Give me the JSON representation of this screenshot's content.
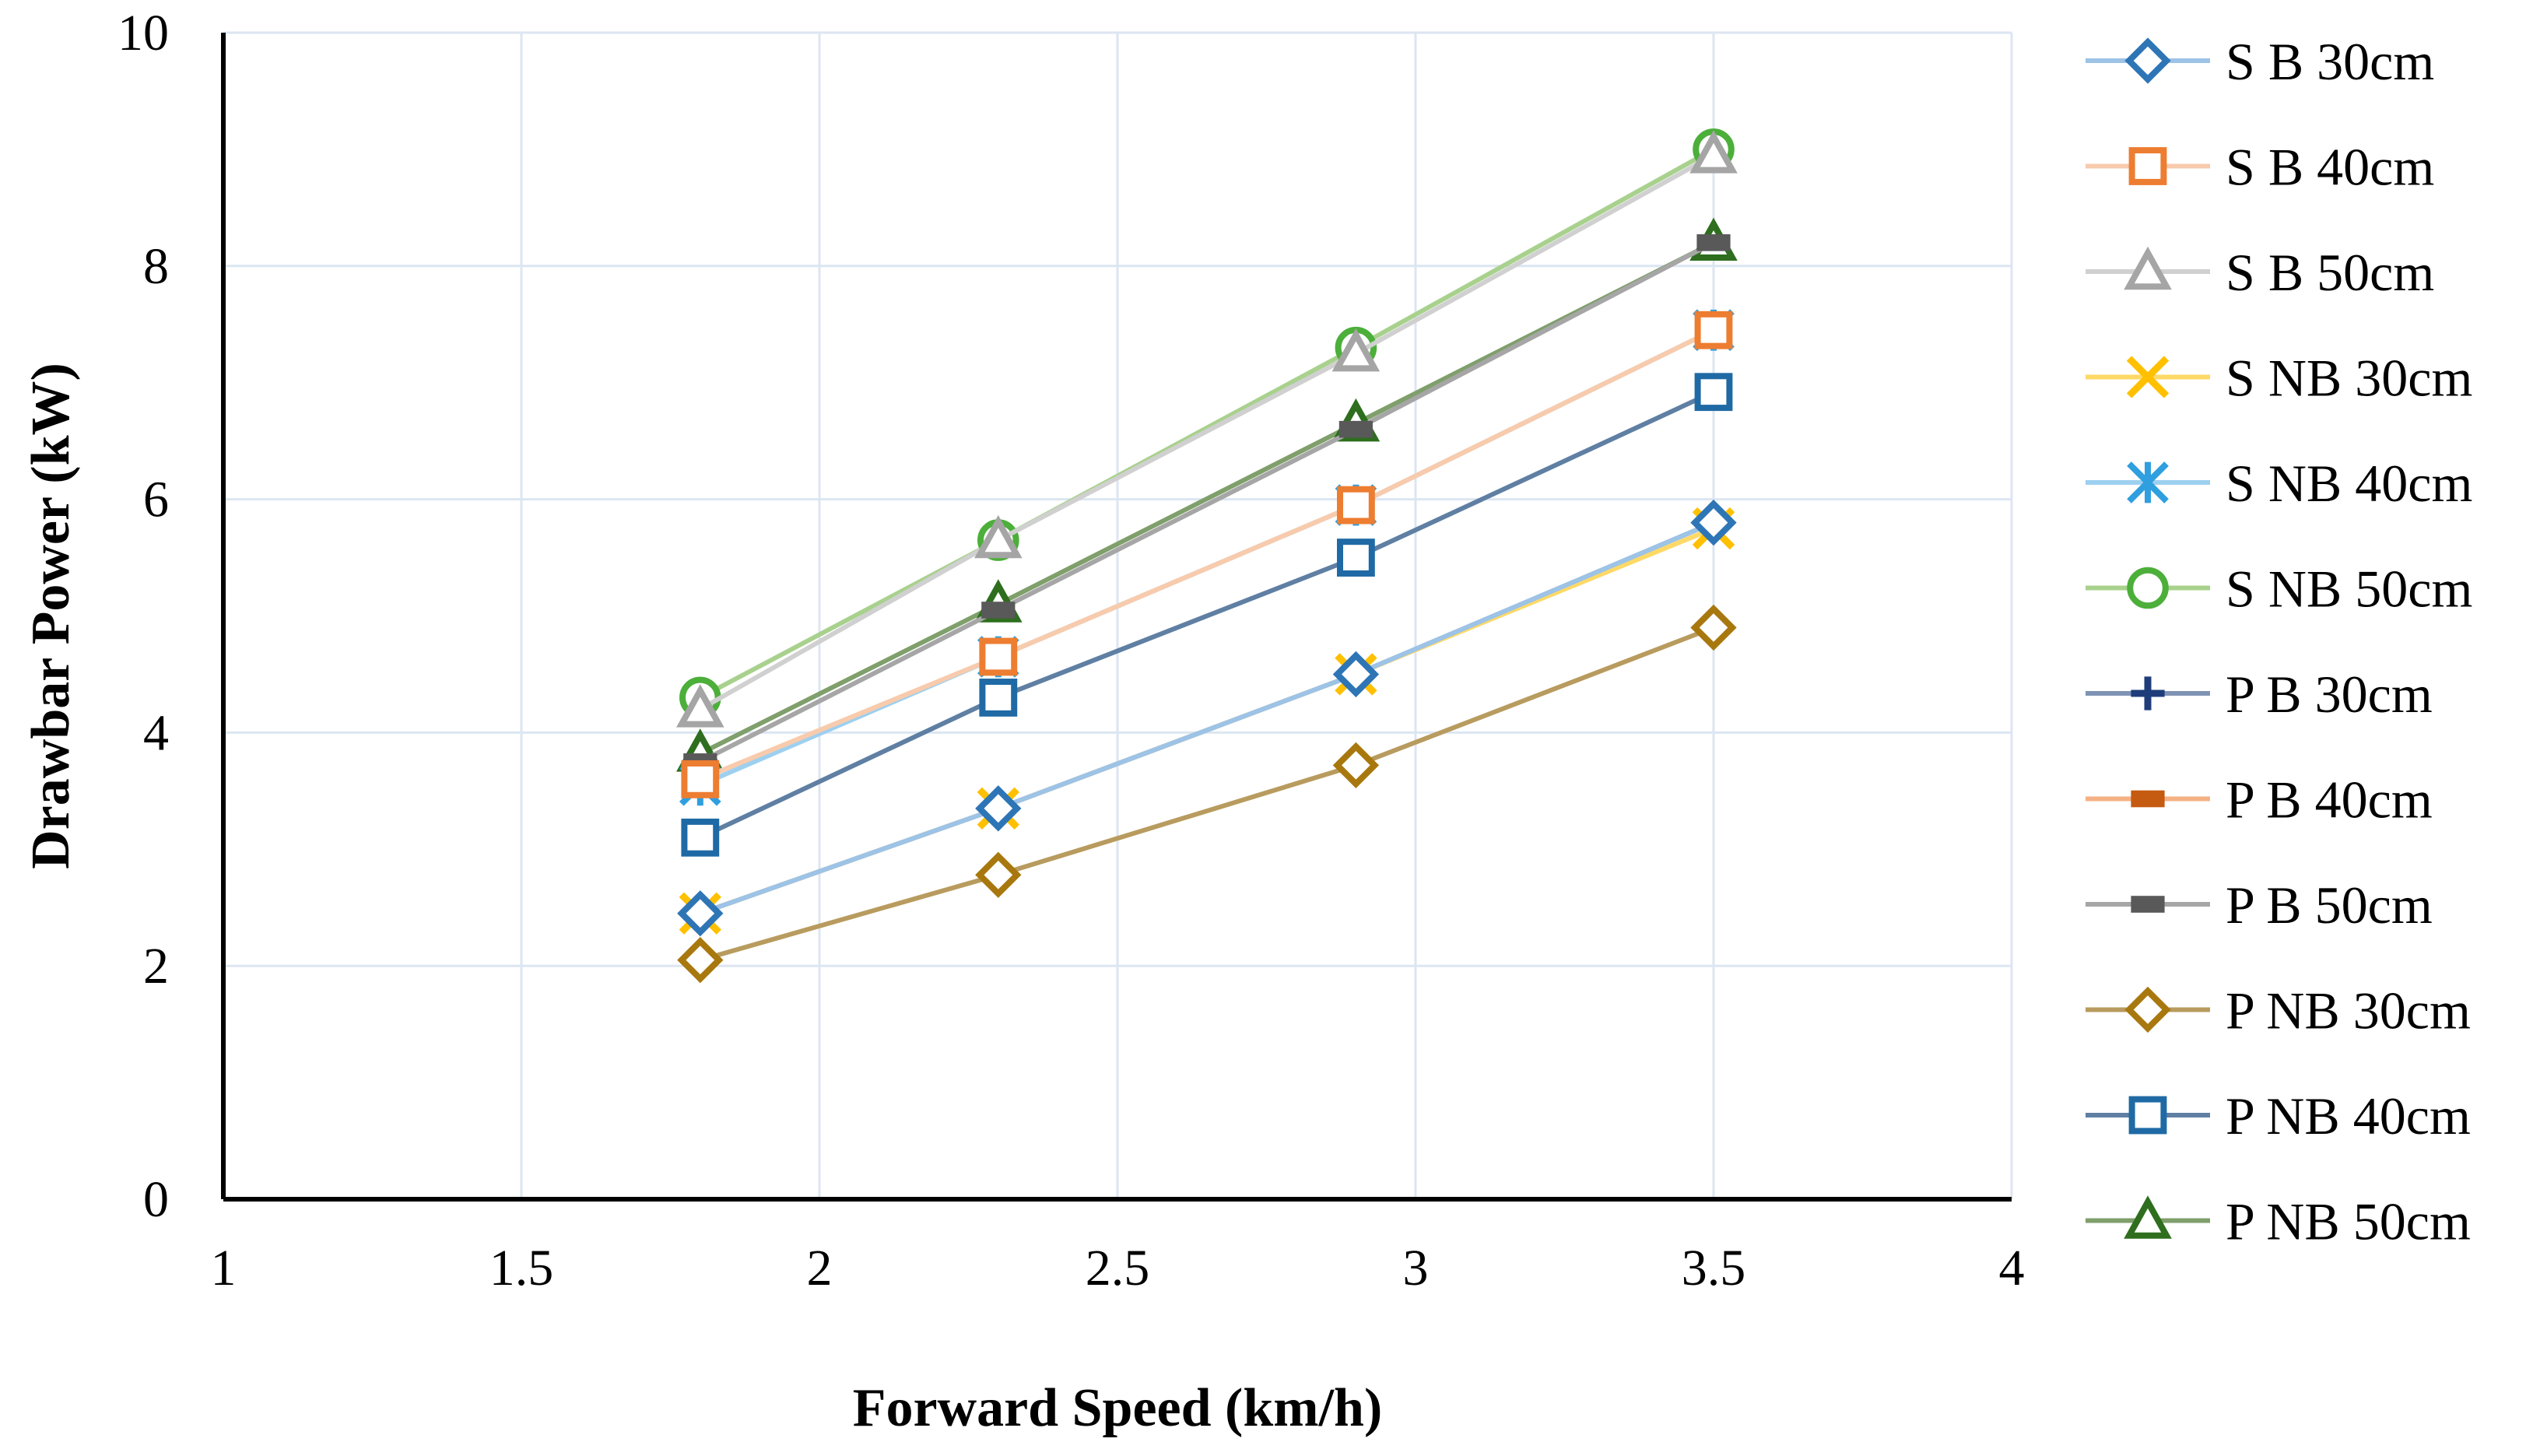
{
  "chart_data": {
    "type": "line",
    "title": "",
    "xlabel": "Forward Speed (km/h)",
    "ylabel": "Drawbar Power (kW)",
    "xlim": [
      1,
      4
    ],
    "ylim": [
      0,
      10
    ],
    "xticks": [
      1,
      1.5,
      2,
      2.5,
      3,
      3.5,
      4
    ],
    "xtick_labels": [
      "1",
      "1.5",
      "2",
      "2.5",
      "3",
      "3.5",
      "4"
    ],
    "yticks": [
      0,
      2,
      4,
      6,
      8,
      10
    ],
    "ytick_labels": [
      "0",
      "2",
      "4",
      "6",
      "8",
      "10"
    ],
    "grid": true,
    "legend_position": "right",
    "x": [
      1.8,
      2.3,
      2.9,
      3.5
    ],
    "series": [
      {
        "name": "S B 30cm",
        "values": [
          2.45,
          3.35,
          4.5,
          5.8
        ],
        "color": "#2e75b6",
        "line_color": "#9dc3e6",
        "marker": "diamond"
      },
      {
        "name": "S B 40cm",
        "values": [
          3.6,
          4.65,
          5.95,
          7.45
        ],
        "color": "#ed7d31",
        "line_color": "#f8cbad",
        "marker": "square"
      },
      {
        "name": "S B 50cm",
        "values": [
          4.2,
          5.65,
          7.25,
          8.95
        ],
        "color": "#a5a5a5",
        "line_color": "#d0d0d0",
        "marker": "triangle"
      },
      {
        "name": "S NB 30cm",
        "values": [
          2.45,
          3.35,
          4.5,
          5.75
        ],
        "color": "#ffc000",
        "line_color": "#ffd966",
        "marker": "x"
      },
      {
        "name": "S NB 40cm",
        "values": [
          3.55,
          4.65,
          5.95,
          7.45
        ],
        "color": "#2f9fe0",
        "line_color": "#9dd0f0",
        "marker": "asterisk"
      },
      {
        "name": "S NB 50cm",
        "values": [
          4.3,
          5.65,
          7.3,
          9.0
        ],
        "color": "#4caf3a",
        "line_color": "#a9d18e",
        "marker": "circle"
      },
      {
        "name": "P B 30cm",
        "values": [
          2.45,
          3.35,
          4.5,
          5.8
        ],
        "color": "#1f3d7a",
        "line_color": "#7f93b5",
        "marker": "plus"
      },
      {
        "name": "P B 40cm",
        "values": [
          3.6,
          4.65,
          5.95,
          7.45
        ],
        "color": "#c55a11",
        "line_color": "#f4b183",
        "marker": "dash"
      },
      {
        "name": "P B 50cm",
        "values": [
          3.75,
          5.05,
          6.6,
          8.2
        ],
        "color": "#595959",
        "line_color": "#a6a6a6",
        "marker": "dash"
      },
      {
        "name": "P NB 30cm",
        "values": [
          2.05,
          2.78,
          3.72,
          4.9
        ],
        "color": "#a8780f",
        "line_color": "#b89b5e",
        "marker": "diamond"
      },
      {
        "name": "P NB 40cm",
        "values": [
          3.1,
          4.3,
          5.5,
          6.92
        ],
        "color": "#1f6aa5",
        "line_color": "#5f7fa3",
        "marker": "square"
      },
      {
        "name": "P NB 50cm",
        "values": [
          3.82,
          5.1,
          6.65,
          8.2
        ],
        "color": "#2e6e1e",
        "line_color": "#7f9f6b",
        "marker": "triangle"
      }
    ]
  }
}
